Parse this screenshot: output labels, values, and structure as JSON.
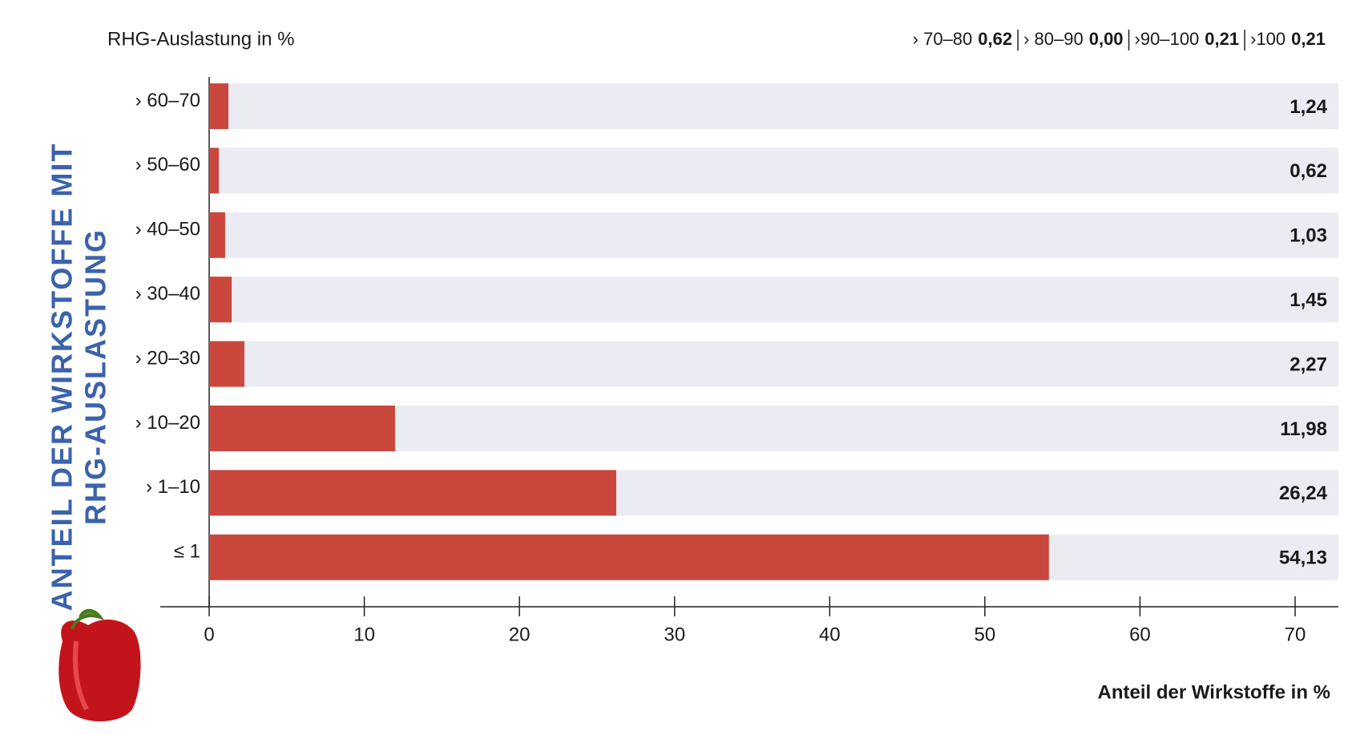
{
  "chart_data": {
    "type": "hbar",
    "title": "RHG-Auslastung in %",
    "annotation": [
      {
        "label": "› 70–80",
        "value": "0,62"
      },
      {
        "label": "› 80–90",
        "value": "0,00"
      },
      {
        "label": "›90–100",
        "value": "0,21"
      },
      {
        "label": "›100",
        "value": "0,21"
      }
    ],
    "ylabel": [
      "ANTEIL DER WIRKSTOFFE MIT",
      "RHG-AUSLASTUNG"
    ],
    "xlabel": "Anteil der Wirkstoffe in %",
    "categories": [
      "› 60–70",
      "› 50–60",
      "› 40–50",
      "› 30–40",
      "› 20–30",
      "› 10–20",
      "› 1–10",
      "≤ 1"
    ],
    "values": [
      1.24,
      0.62,
      1.03,
      1.45,
      2.27,
      11.98,
      26.24,
      54.13
    ],
    "value_labels": [
      "1,24",
      "0,62",
      "1,03",
      "1,45",
      "2,27",
      "11,98",
      "26,24",
      "54,13"
    ],
    "color": "#c9473c",
    "xlim": [
      0,
      70
    ],
    "xticks": [
      0,
      10,
      20,
      30,
      40,
      50,
      60,
      70
    ]
  }
}
